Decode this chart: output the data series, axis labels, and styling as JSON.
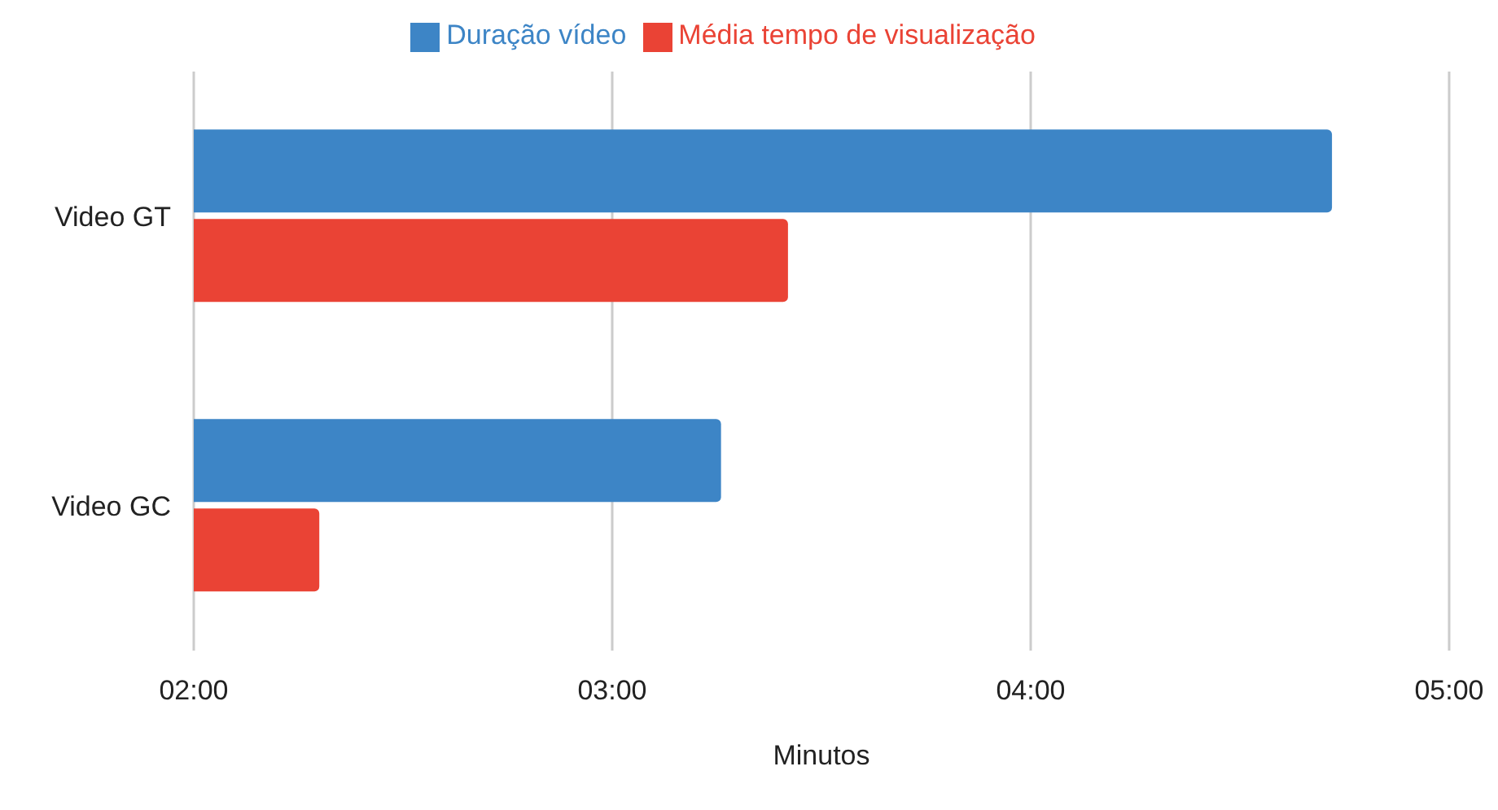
{
  "chart_data": {
    "type": "bar",
    "orientation": "horizontal",
    "categories": [
      "Video GT",
      "Video GC"
    ],
    "series": [
      {
        "name": "Duração vídeo",
        "color": "#3d85c6",
        "values": [
          4.72,
          3.26
        ]
      },
      {
        "name": "Média tempo de visualização",
        "color": "#ea4335",
        "values": [
          3.42,
          2.3
        ]
      }
    ],
    "xlabel": "Minutos",
    "xlim": [
      2,
      5
    ],
    "xticks": [
      {
        "value": 2,
        "label": "02:00"
      },
      {
        "value": 3,
        "label": "03:00"
      },
      {
        "value": 4,
        "label": "04:00"
      },
      {
        "value": 5,
        "label": "05:00"
      }
    ],
    "grid": "x",
    "legend": "top"
  }
}
